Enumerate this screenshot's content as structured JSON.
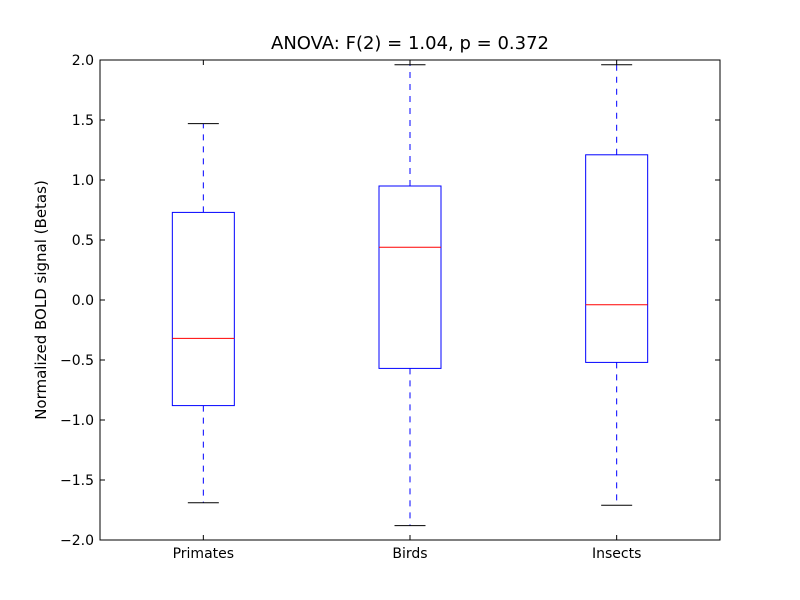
{
  "chart_data": {
    "type": "boxplot",
    "title": "ANOVA: F(2) = 1.04, p = 0.372",
    "xlabel": "",
    "ylabel": "Normalized BOLD signal (Betas)",
    "ylim": [
      -2.0,
      2.0
    ],
    "yticks": [
      "−2.0",
      "−1.5",
      "−1.0",
      "−0.5",
      "0.0",
      "0.5",
      "1.0",
      "1.5",
      "2.0"
    ],
    "ytick_values": [
      -2.0,
      -1.5,
      -1.0,
      -0.5,
      0.0,
      0.5,
      1.0,
      1.5,
      2.0
    ],
    "categories": [
      "Primates",
      "Birds",
      "Insects"
    ],
    "boxes": [
      {
        "whisker_low": -1.69,
        "q1": -0.88,
        "median": -0.32,
        "q3": 0.73,
        "whisker_high": 1.47
      },
      {
        "whisker_low": -1.88,
        "q1": -0.57,
        "median": 0.44,
        "q3": 0.95,
        "whisker_high": 1.96
      },
      {
        "whisker_low": -1.71,
        "q1": -0.52,
        "median": -0.04,
        "q3": 1.21,
        "whisker_high": 1.96
      }
    ],
    "grid": false,
    "colors": {
      "box": "#0000ff",
      "median": "#ff0000",
      "cap": "#000000"
    }
  }
}
